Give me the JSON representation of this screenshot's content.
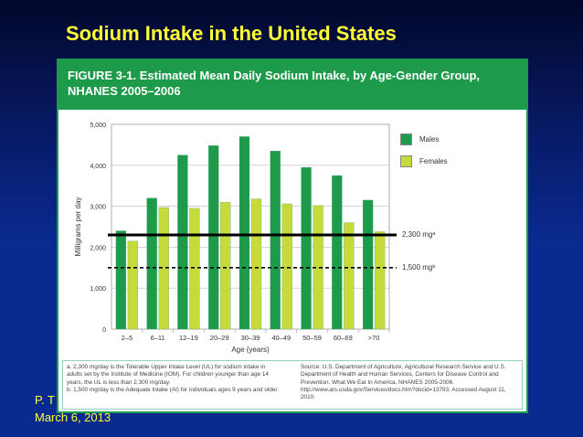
{
  "slide": {
    "title": "Sodium Intake in the United States",
    "corner_text_1": "P. T",
    "corner_text_2": "March 6, 2013"
  },
  "figure": {
    "header_line1": "FIGURE 3-1. Estimated Mean Daily Sodium Intake, by Age-Gender Group,",
    "header_line2": "NHANES 2005–2006",
    "footnote_a": "a. 2,300 mg/day is the Tolerable Upper Intake Level (UL) for sodium intake in adults set by the Institute of Medicine (IOM). For children younger than age 14 years, the UL is less than 2,300 mg/day.",
    "footnote_b": "b. 1,500 mg/day is the Adequate Intake (AI) for individuals ages 9 years and older.",
    "source": "Source: U.S. Department of Agriculture, Agricultural Research Service and U.S. Department of Health and Human Services, Centers for Disease Control and Prevention. What We Eat In America, NHANES 2005-2006. http://www.ars.usda.gov/Services/docs.htm?docid=13793. Accessed August 11, 2010.",
    "ref_line_high_label": "2,300 mgᵃ",
    "ref_line_low_label": "1,500 mgᵇ"
  },
  "colors": {
    "background": "#0b2a8f",
    "title": "#ffff33",
    "header": "#1e9b4a",
    "males": "#1e9b4a",
    "females": "#c6da3c"
  },
  "chart_data": {
    "type": "bar",
    "title": "",
    "xlabel": "Age (years)",
    "ylabel": "Milligrams per day",
    "categories": [
      "2–5",
      "6–11",
      "12–19",
      "20–29",
      "30–39",
      "40–49",
      "50–59",
      "60–69",
      ">70"
    ],
    "series": [
      {
        "name": "Males",
        "values": [
          2400,
          3200,
          4250,
          4480,
          4700,
          4350,
          3950,
          3750,
          3150
        ]
      },
      {
        "name": "Females",
        "values": [
          2150,
          2970,
          2950,
          3100,
          3180,
          3060,
          3020,
          2600,
          2380
        ]
      }
    ],
    "yticks": [
      "0",
      "1,000",
      "2,000",
      "3,000",
      "4,000",
      "5,000"
    ],
    "ylim": [
      0,
      5000
    ],
    "reference_lines": [
      {
        "value": 2300,
        "style": "solid"
      },
      {
        "value": 1500,
        "style": "dashed"
      }
    ],
    "grid": true,
    "legend_position": "top-right"
  }
}
